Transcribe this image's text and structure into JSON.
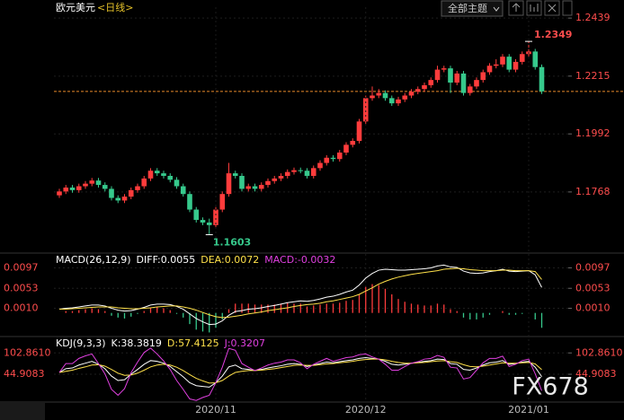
{
  "toolbar": {
    "title": "欧元美元",
    "period": "<日线>",
    "theme_button": "全部主题"
  },
  "watermark": "FX678",
  "chart_data": [
    {
      "type": "candlestick",
      "up_color": "#ff3c3c",
      "down_color": "#36c98c",
      "ylim": [
        1.1546,
        1.2481
      ],
      "yticks": [
        1.2439,
        1.2215,
        1.1992,
        1.1768
      ],
      "grid": true,
      "last_price": 1.2156,
      "last_price_color": "#e8892a",
      "high_label": "1.2349",
      "low_label": "1.1603",
      "categories": [
        null,
        null,
        null,
        null,
        null,
        null,
        null,
        null,
        null,
        null,
        null,
        null,
        null,
        null,
        null,
        null,
        null,
        null,
        null,
        null,
        null,
        null,
        null,
        null,
        "2020/11",
        null,
        null,
        null,
        null,
        null,
        null,
        null,
        null,
        null,
        null,
        null,
        null,
        null,
        null,
        null,
        null,
        null,
        null,
        null,
        null,
        null,
        null,
        "2020/12",
        null,
        null,
        null,
        null,
        null,
        null,
        null,
        null,
        null,
        null,
        null,
        null,
        null,
        null,
        null,
        null,
        null,
        null,
        null,
        null,
        null,
        null,
        null,
        null,
        "2021/01",
        null,
        null
      ],
      "candles": [
        [
          1.1755,
          1.178,
          1.1745,
          1.177
        ],
        [
          1.177,
          1.1795,
          1.176,
          1.1785
        ],
        [
          1.1785,
          1.1795,
          1.1765,
          1.1775
        ],
        [
          1.1775,
          1.18,
          1.1765,
          1.179
        ],
        [
          1.179,
          1.181,
          1.178,
          1.18
        ],
        [
          1.18,
          1.1822,
          1.179,
          1.1812
        ],
        [
          1.1812,
          1.1822,
          1.1785,
          1.1795
        ],
        [
          1.1795,
          1.1805,
          1.177,
          1.178
        ],
        [
          1.178,
          1.179,
          1.1735,
          1.1745
        ],
        [
          1.1745,
          1.1755,
          1.1725,
          1.1735
        ],
        [
          1.1735,
          1.176,
          1.1725,
          1.175
        ],
        [
          1.175,
          1.1785,
          1.174,
          1.1775
        ],
        [
          1.1775,
          1.18,
          1.1765,
          1.179
        ],
        [
          1.179,
          1.183,
          1.178,
          1.182
        ],
        [
          1.182,
          1.186,
          1.181,
          1.185
        ],
        [
          1.185,
          1.186,
          1.183,
          1.184
        ],
        [
          1.184,
          1.185,
          1.182,
          1.183
        ],
        [
          1.183,
          1.184,
          1.1805,
          1.1815
        ],
        [
          1.1815,
          1.1825,
          1.178,
          1.179
        ],
        [
          1.179,
          1.18,
          1.175,
          1.176
        ],
        [
          1.176,
          1.177,
          1.169,
          1.17
        ],
        [
          1.17,
          1.171,
          1.165,
          1.166
        ],
        [
          1.166,
          1.167,
          1.164,
          1.165
        ],
        [
          1.165,
          1.1665,
          1.1603,
          1.164
        ],
        [
          1.164,
          1.171,
          1.163,
          1.17
        ],
        [
          1.17,
          1.177,
          1.169,
          1.176
        ],
        [
          1.176,
          1.188,
          1.175,
          1.184
        ],
        [
          1.184,
          1.185,
          1.182,
          1.183
        ],
        [
          1.183,
          1.184,
          1.177,
          1.178
        ],
        [
          1.178,
          1.18,
          1.177,
          1.179
        ],
        [
          1.179,
          1.18,
          1.177,
          1.178
        ],
        [
          1.178,
          1.1805,
          1.177,
          1.1795
        ],
        [
          1.1795,
          1.182,
          1.1785,
          1.181
        ],
        [
          1.181,
          1.183,
          1.18,
          1.182
        ],
        [
          1.182,
          1.184,
          1.181,
          1.183
        ],
        [
          1.183,
          1.1855,
          1.182,
          1.1845
        ],
        [
          1.1845,
          1.1862,
          1.1835,
          1.1852
        ],
        [
          1.1852,
          1.1862,
          1.184,
          1.185
        ],
        [
          1.185,
          1.186,
          1.182,
          1.183
        ],
        [
          1.183,
          1.187,
          1.182,
          1.186
        ],
        [
          1.186,
          1.189,
          1.185,
          1.188
        ],
        [
          1.188,
          1.191,
          1.187,
          1.19
        ],
        [
          1.19,
          1.191,
          1.1885,
          1.1895
        ],
        [
          1.1895,
          1.193,
          1.1885,
          1.192
        ],
        [
          1.192,
          1.196,
          1.191,
          1.195
        ],
        [
          1.195,
          1.1975,
          1.194,
          1.1965
        ],
        [
          1.1965,
          1.205,
          1.1955,
          1.204
        ],
        [
          1.204,
          1.214,
          1.203,
          1.213
        ],
        [
          1.213,
          1.2175,
          1.212,
          1.214
        ],
        [
          1.214,
          1.2165,
          1.213,
          1.215
        ],
        [
          1.215,
          1.216,
          1.212,
          1.213
        ],
        [
          1.213,
          1.214,
          1.21,
          1.211
        ],
        [
          1.211,
          1.2135,
          1.21,
          1.2125
        ],
        [
          1.2125,
          1.215,
          1.2115,
          1.214
        ],
        [
          1.214,
          1.2165,
          1.213,
          1.2155
        ],
        [
          1.2155,
          1.2175,
          1.2145,
          1.2165
        ],
        [
          1.2165,
          1.219,
          1.2155,
          1.218
        ],
        [
          1.218,
          1.221,
          1.217,
          1.22
        ],
        [
          1.22,
          1.2255,
          1.219,
          1.224
        ],
        [
          1.224,
          1.2255,
          1.223,
          1.2245
        ],
        [
          1.2245,
          1.2255,
          1.215,
          1.219
        ],
        [
          1.219,
          1.2235,
          1.218,
          1.2225
        ],
        [
          1.2225,
          1.2235,
          1.214,
          1.215
        ],
        [
          1.215,
          1.2185,
          1.214,
          1.2175
        ],
        [
          1.2175,
          1.221,
          1.2165,
          1.22
        ],
        [
          1.22,
          1.224,
          1.219,
          1.223
        ],
        [
          1.223,
          1.2265,
          1.222,
          1.2255
        ],
        [
          1.2255,
          1.228,
          1.2245,
          1.226
        ],
        [
          1.226,
          1.23,
          1.225,
          1.229
        ],
        [
          1.229,
          1.23,
          1.223,
          1.224
        ],
        [
          1.224,
          1.228,
          1.223,
          1.227
        ],
        [
          1.227,
          1.231,
          1.226,
          1.23
        ],
        [
          1.23,
          1.2349,
          1.229,
          1.231
        ],
        [
          1.231,
          1.232,
          1.224,
          1.225
        ],
        [
          1.225,
          1.226,
          1.2146,
          1.2156
        ]
      ]
    },
    {
      "type": "macd",
      "header": [
        {
          "text": "MACD(26,12,9)",
          "color": "#ffffff"
        },
        {
          "text": "DIFF:0.0055",
          "color": "#ffffff"
        },
        {
          "text": "DEA:0.0072",
          "color": "#ffe14a"
        },
        {
          "text": "MACD:-0.0032",
          "color": "#e040e0"
        }
      ],
      "ylim": [
        -0.0045,
        0.0123
      ],
      "yticks": [
        0.0097,
        0.0053,
        {
          "value": 0.001,
          "label": "0.0010"
        }
      ],
      "up_color": "#ff3c3c",
      "down_color": "#36c98c",
      "series": [
        {
          "color": "#ffffff",
          "values": [
            0.0008,
            0.001,
            0.0011,
            0.0013,
            0.0015,
            0.0017,
            0.0017,
            0.0015,
            0.001,
            0.0006,
            0.0004,
            0.0005,
            0.0008,
            0.0012,
            0.0017,
            0.0019,
            0.0019,
            0.0018,
            0.0014,
            0.0008,
            -0.0002,
            -0.0012,
            -0.0019,
            -0.0025,
            -0.0024,
            -0.0017,
            -0.0005,
            0.0003,
            0.0005,
            0.0008,
            0.0009,
            0.0011,
            0.0014,
            0.0016,
            0.0019,
            0.0022,
            0.0024,
            0.0026,
            0.0025,
            0.0027,
            0.003,
            0.0034,
            0.0036,
            0.004,
            0.0045,
            0.0049,
            0.006,
            0.0075,
            0.0085,
            0.0092,
            0.0094,
            0.0093,
            0.0092,
            0.0092,
            0.0093,
            0.0094,
            0.0095,
            0.0097,
            0.0101,
            0.0103,
            0.0099,
            0.0098,
            0.009,
            0.0086,
            0.0085,
            0.0086,
            0.0089,
            0.0091,
            0.0094,
            0.009,
            0.0089,
            0.009,
            0.0091,
            0.0082,
            0.0055
          ]
        },
        {
          "color": "#ffe14a",
          "values": [
            0.0008,
            0.0008,
            0.0009,
            0.001,
            0.0011,
            0.0012,
            0.0013,
            0.0013,
            0.0013,
            0.0011,
            0.001,
            0.0009,
            0.0009,
            0.001,
            0.0011,
            0.0013,
            0.0014,
            0.0015,
            0.0015,
            0.0013,
            0.001,
            0.0006,
            0.0001,
            -0.0004,
            -0.0008,
            -0.001,
            -0.0009,
            -0.0007,
            -0.0005,
            -0.0002,
            0.0,
            0.0002,
            0.0005,
            0.0007,
            0.0009,
            0.0011,
            0.0014,
            0.0016,
            0.0018,
            0.0019,
            0.0021,
            0.0024,
            0.0026,
            0.0029,
            0.0032,
            0.0035,
            0.004,
            0.0047,
            0.0054,
            0.0062,
            0.0068,
            0.0073,
            0.0077,
            0.008,
            0.0083,
            0.0085,
            0.0087,
            0.0089,
            0.0091,
            0.0094,
            0.0095,
            0.0096,
            0.0095,
            0.0093,
            0.0092,
            0.0091,
            0.0091,
            0.0091,
            0.0092,
            0.0092,
            0.0091,
            0.0091,
            0.0091,
            0.0089,
            0.0072
          ]
        }
      ],
      "histogram": [
        0,
        0.0004,
        0.0004,
        0.0006,
        0.0008,
        0.001,
        0.0008,
        0.0004,
        -0.0006,
        -0.001,
        -0.0012,
        -0.0008,
        -0.0002,
        0.0004,
        0.0012,
        0.0012,
        0.001,
        0.0006,
        -0.0002,
        -0.001,
        -0.0024,
        -0.0036,
        -0.004,
        -0.0042,
        -0.0032,
        -0.0014,
        0.0008,
        0.002,
        0.002,
        0.002,
        0.0018,
        0.0018,
        0.0018,
        0.0018,
        0.002,
        0.0022,
        0.002,
        0.002,
        0.0014,
        0.0016,
        0.0018,
        0.002,
        0.002,
        0.0022,
        0.0026,
        0.0028,
        0.004,
        0.0056,
        0.0062,
        0.006,
        0.0052,
        0.004,
        0.003,
        0.0024,
        0.002,
        0.0018,
        0.0016,
        0.0016,
        0.002,
        0.0018,
        0.0008,
        0.0004,
        -0.001,
        -0.0014,
        -0.0014,
        -0.001,
        -0.0004,
        0,
        0.0004,
        -0.0004,
        -0.0004,
        -0.0002,
        0,
        -0.0014,
        -0.0032
      ]
    },
    {
      "type": "kdj",
      "header": [
        {
          "text": "KDJ(9,3,3)",
          "color": "#ffffff"
        },
        {
          "text": "K:38.3819",
          "color": "#ffffff"
        },
        {
          "text": "D:57.4125",
          "color": "#ffe14a"
        },
        {
          "text": "J:0.3207",
          "color": "#e040e0"
        }
      ],
      "ylim": [
        -28,
        140
      ],
      "yticks": [
        {
          "value": 102.861,
          "label": "102.8610"
        },
        44.9083
      ],
      "series": [
        {
          "color": "#ffffff",
          "values": [
            50,
            60,
            62,
            70,
            75,
            80,
            72,
            60,
            40,
            28,
            30,
            45,
            58,
            72,
            82,
            80,
            75,
            66,
            52,
            38,
            22,
            14,
            12,
            10,
            22,
            40,
            65,
            70,
            60,
            58,
            55,
            58,
            62,
            65,
            68,
            72,
            74,
            72,
            66,
            70,
            74,
            78,
            76,
            79,
            82,
            84,
            88,
            90,
            88,
            86,
            80,
            72,
            70,
            72,
            75,
            77,
            80,
            82,
            86,
            85,
            74,
            72,
            58,
            56,
            62,
            70,
            76,
            78,
            82,
            72,
            74,
            78,
            80,
            64,
            38.3819
          ]
        },
        {
          "color": "#ffe14a",
          "values": [
            50,
            53,
            56,
            61,
            65,
            70,
            71,
            67,
            58,
            48,
            42,
            43,
            48,
            56,
            65,
            70,
            72,
            70,
            64,
            55,
            44,
            34,
            27,
            21,
            22,
            28,
            40,
            50,
            53,
            55,
            55,
            56,
            58,
            60,
            63,
            66,
            69,
            70,
            69,
            69,
            71,
            73,
            74,
            76,
            78,
            80,
            83,
            85,
            86,
            86,
            84,
            80,
            77,
            75,
            75,
            76,
            77,
            79,
            81,
            82,
            79,
            77,
            71,
            66,
            65,
            67,
            70,
            73,
            76,
            75,
            75,
            76,
            77,
            73,
            57.4125
          ]
        },
        {
          "color": "#e040e0",
          "values": [
            50,
            74,
            74,
            88,
            95,
            100,
            74,
            46,
            4,
            -12,
            6,
            49,
            78,
            104,
            116,
            100,
            81,
            58,
            28,
            4,
            -22,
            -26,
            -18,
            -12,
            22,
            64,
            115,
            110,
            74,
            64,
            55,
            62,
            70,
            75,
            78,
            84,
            84,
            76,
            60,
            72,
            80,
            88,
            80,
            85,
            90,
            92,
            98,
            100,
            92,
            86,
            72,
            56,
            56,
            66,
            75,
            79,
            86,
            88,
            96,
            91,
            64,
            62,
            32,
            36,
            56,
            76,
            88,
            88,
            94,
            66,
            72,
            82,
            86,
            46,
            0.3207
          ]
        }
      ]
    }
  ]
}
